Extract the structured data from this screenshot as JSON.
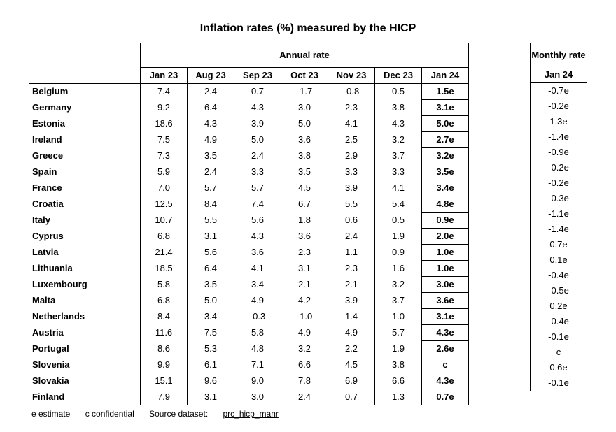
{
  "title": "Inflation rates (%) measured by the HICP",
  "annual_header": "Annual rate",
  "monthly_header": "Monthly rate",
  "columns": [
    "Jan 23",
    "Aug 23",
    "Sep 23",
    "Oct 23",
    "Nov 23",
    "Dec 23",
    "Jan 24"
  ],
  "monthly_column": "Jan 24",
  "rows": [
    {
      "country": "Belgium",
      "values": [
        "7.4",
        "2.4",
        "0.7",
        "-1.7",
        "-0.8",
        "0.5",
        "1.5e"
      ],
      "monthly": "-0.7e"
    },
    {
      "country": "Germany",
      "values": [
        "9.2",
        "6.4",
        "4.3",
        "3.0",
        "2.3",
        "3.8",
        "3.1e"
      ],
      "monthly": "-0.2e"
    },
    {
      "country": "Estonia",
      "values": [
        "18.6",
        "4.3",
        "3.9",
        "5.0",
        "4.1",
        "4.3",
        "5.0e"
      ],
      "monthly": "1.3e"
    },
    {
      "country": "Ireland",
      "values": [
        "7.5",
        "4.9",
        "5.0",
        "3.6",
        "2.5",
        "3.2",
        "2.7e"
      ],
      "monthly": "-1.4e"
    },
    {
      "country": "Greece",
      "values": [
        "7.3",
        "3.5",
        "2.4",
        "3.8",
        "2.9",
        "3.7",
        "3.2e"
      ],
      "monthly": "-0.9e"
    },
    {
      "country": "Spain",
      "values": [
        "5.9",
        "2.4",
        "3.3",
        "3.5",
        "3.3",
        "3.3",
        "3.5e"
      ],
      "monthly": "-0.2e"
    },
    {
      "country": "France",
      "values": [
        "7.0",
        "5.7",
        "5.7",
        "4.5",
        "3.9",
        "4.1",
        "3.4e"
      ],
      "monthly": "-0.2e"
    },
    {
      "country": "Croatia",
      "values": [
        "12.5",
        "8.4",
        "7.4",
        "6.7",
        "5.5",
        "5.4",
        "4.8e"
      ],
      "monthly": "-0.3e"
    },
    {
      "country": "Italy",
      "values": [
        "10.7",
        "5.5",
        "5.6",
        "1.8",
        "0.6",
        "0.5",
        "0.9e"
      ],
      "monthly": "-1.1e"
    },
    {
      "country": "Cyprus",
      "values": [
        "6.8",
        "3.1",
        "4.3",
        "3.6",
        "2.4",
        "1.9",
        "2.0e"
      ],
      "monthly": "-1.4e"
    },
    {
      "country": "Latvia",
      "values": [
        "21.4",
        "5.6",
        "3.6",
        "2.3",
        "1.1",
        "0.9",
        "1.0e"
      ],
      "monthly": "0.7e"
    },
    {
      "country": "Lithuania",
      "values": [
        "18.5",
        "6.4",
        "4.1",
        "3.1",
        "2.3",
        "1.6",
        "1.0e"
      ],
      "monthly": "0.1e"
    },
    {
      "country": "Luxembourg",
      "values": [
        "5.8",
        "3.5",
        "3.4",
        "2.1",
        "2.1",
        "3.2",
        "3.0e"
      ],
      "monthly": "-0.4e"
    },
    {
      "country": "Malta",
      "values": [
        "6.8",
        "5.0",
        "4.9",
        "4.2",
        "3.9",
        "3.7",
        "3.6e"
      ],
      "monthly": "-0.5e"
    },
    {
      "country": "Netherlands",
      "values": [
        "8.4",
        "3.4",
        "-0.3",
        "-1.0",
        "1.4",
        "1.0",
        "3.1e"
      ],
      "monthly": "0.2e"
    },
    {
      "country": "Austria",
      "values": [
        "11.6",
        "7.5",
        "5.8",
        "4.9",
        "4.9",
        "5.7",
        "4.3e"
      ],
      "monthly": "-0.4e"
    },
    {
      "country": "Portugal",
      "values": [
        "8.6",
        "5.3",
        "4.8",
        "3.2",
        "2.2",
        "1.9",
        "2.6e"
      ],
      "monthly": "-0.1e"
    },
    {
      "country": "Slovenia",
      "values": [
        "9.9",
        "6.1",
        "7.1",
        "6.6",
        "4.5",
        "3.8",
        "c"
      ],
      "monthly": "c"
    },
    {
      "country": "Slovakia",
      "values": [
        "15.1",
        "9.6",
        "9.0",
        "7.8",
        "6.9",
        "6.6",
        "4.3e"
      ],
      "monthly": "0.6e"
    },
    {
      "country": "Finland",
      "values": [
        "7.9",
        "3.1",
        "3.0",
        "2.4",
        "0.7",
        "1.3",
        "0.7e"
      ],
      "monthly": "-0.1e"
    }
  ],
  "footer": {
    "estimate": "e estimate",
    "confidential": "c confidential",
    "source_label": "Source dataset:",
    "source_link": "prc_hicp_manr"
  }
}
